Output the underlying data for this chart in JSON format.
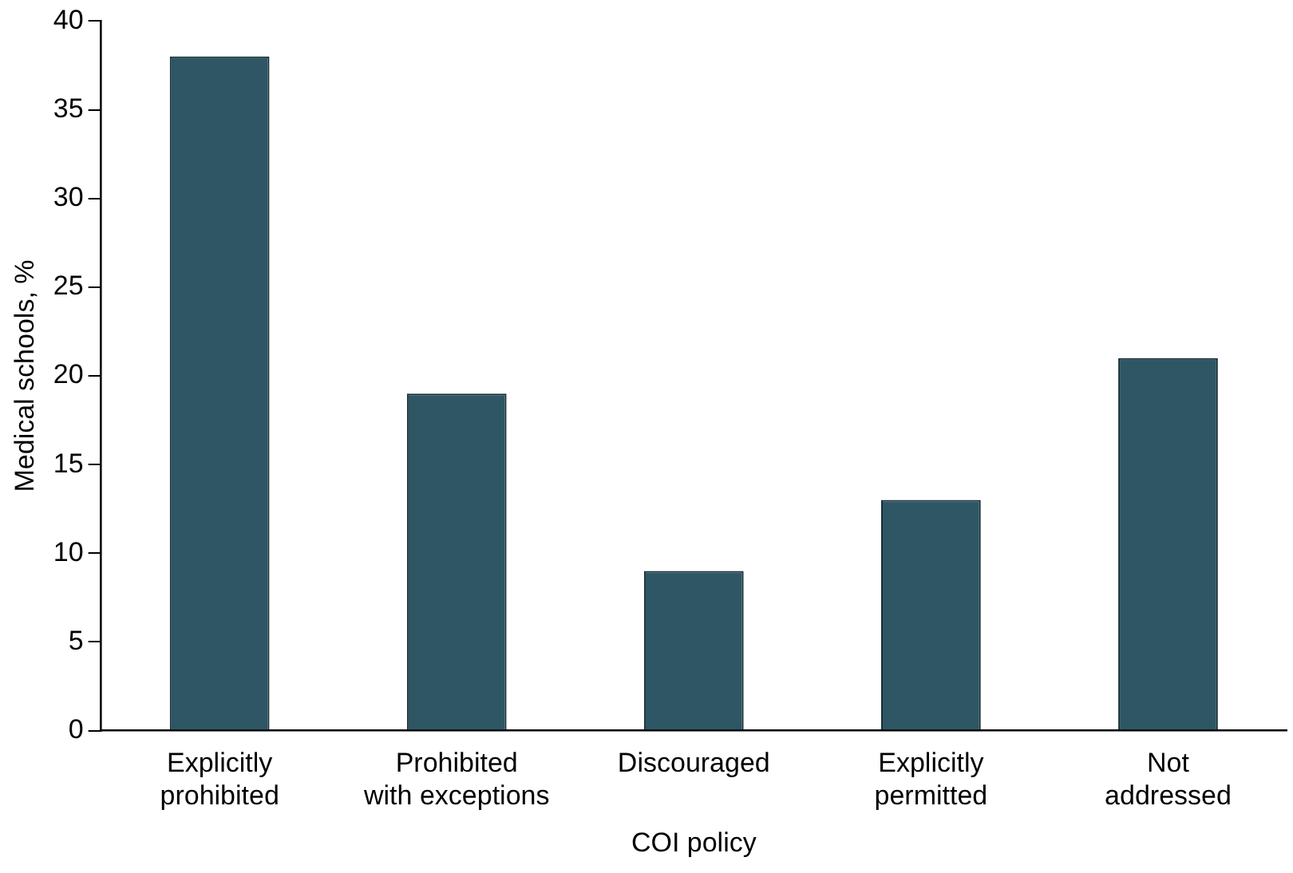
{
  "chart_data": {
    "type": "bar",
    "xlabel": "COI policy",
    "ylabel": "Medical schools, %",
    "categories": [
      "Explicitly\nprohibited",
      "Prohibited\nwith exceptions",
      "Discouraged",
      "Explicitly\npermitted",
      "Not\naddressed"
    ],
    "values": [
      38,
      19,
      9,
      13,
      21
    ],
    "color": "#2e5664",
    "ylim": [
      0,
      40
    ],
    "yticks": [
      0,
      5,
      10,
      15,
      20,
      25,
      30,
      35,
      40
    ],
    "grid": false,
    "legend": false
  }
}
